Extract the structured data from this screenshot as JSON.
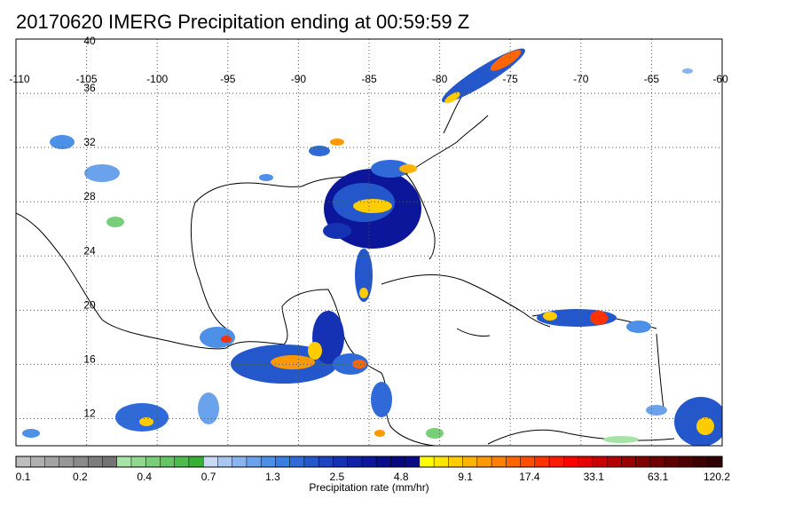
{
  "title": "20170620 IMERG Precipitation ending at 00:59:59 Z",
  "map": {
    "lon_ticks": [
      "-110",
      "-105",
      "-100",
      "-95",
      "-90",
      "-85",
      "-80",
      "-75",
      "-70",
      "-65",
      "-60"
    ],
    "lat_ticks": [
      "40",
      "36",
      "32",
      "28",
      "24",
      "20",
      "16",
      "12"
    ],
    "lon_range": [
      -110,
      -60
    ],
    "lat_range": [
      10,
      40
    ],
    "gridlines": true
  },
  "colorbar": {
    "label": "Precipitation rate (mm/hr)",
    "tick_labels": [
      "0.1",
      "0.2",
      "0.4",
      "0.7",
      "1.3",
      "2.5",
      "4.8",
      "9.1",
      "17.4",
      "33.1",
      "63.1",
      "120.2"
    ],
    "colors": [
      "#bdbdbd",
      "#b0b0b0",
      "#a3a3a3",
      "#969696",
      "#8a8a8a",
      "#7d7d7d",
      "#737373",
      "#a6e3a6",
      "#8fd98f",
      "#79cf79",
      "#63c563",
      "#4dbb4d",
      "#38b038",
      "#c8d8f5",
      "#a9c6f2",
      "#8ab4ef",
      "#6ba2ec",
      "#4d90e8",
      "#3a7de3",
      "#2f6ad8",
      "#2557cc",
      "#1c44c0",
      "#1532b5",
      "#0f22a8",
      "#0b169a",
      "#080d8c",
      "#06067e",
      "#0a0a88",
      "#ffff00",
      "#ffe600",
      "#ffcc00",
      "#ffb300",
      "#ff9900",
      "#ff8000",
      "#ff6600",
      "#ff4d00",
      "#ff3300",
      "#ff1a00",
      "#ff0000",
      "#e60000",
      "#cc0000",
      "#b30000",
      "#990000",
      "#800000",
      "#6e0000",
      "#5c0000",
      "#4d0000",
      "#3d0000",
      "#2e0000"
    ]
  }
}
